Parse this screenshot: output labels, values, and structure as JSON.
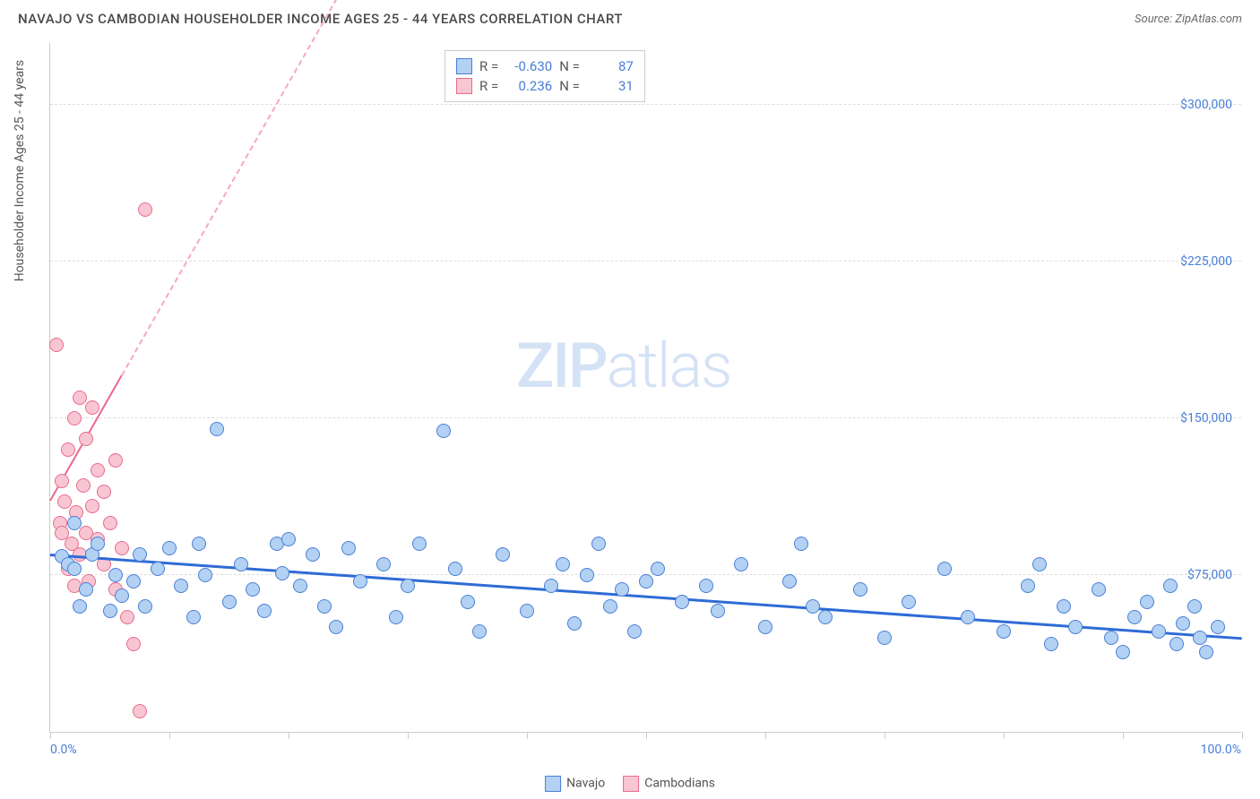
{
  "title": "NAVAJO VS CAMBODIAN HOUSEHOLDER INCOME AGES 25 - 44 YEARS CORRELATION CHART",
  "source_label": "Source: ZipAtlas.com",
  "ylabel": "Householder Income Ages 25 - 44 years",
  "watermark_a": "ZIP",
  "watermark_b": "atlas",
  "chart": {
    "type": "scatter",
    "background_color": "#ffffff",
    "grid_color": "#dddddd",
    "axis_color": "#cccccc",
    "tick_label_color": "#4a7fd8",
    "xlim": [
      0,
      100
    ],
    "ylim": [
      0,
      330000
    ],
    "x_labels": {
      "min": "0.0%",
      "max": "100.0%"
    },
    "y_ticks": [
      {
        "value": 75000,
        "label": "$75,000"
      },
      {
        "value": 150000,
        "label": "$150,000"
      },
      {
        "value": 225000,
        "label": "$225,000"
      },
      {
        "value": 300000,
        "label": "$300,000"
      }
    ],
    "x_tick_positions": [
      0,
      10,
      20,
      30,
      40,
      50,
      60,
      70,
      80,
      90,
      100
    ],
    "marker_radius": 8,
    "series": [
      {
        "name": "Navajo",
        "fill": "#b3d1f2",
        "stroke": "#4a7fd8",
        "R": "-0.630",
        "N": "87",
        "trend": {
          "x1": 0,
          "y1": 84000,
          "x2": 100,
          "y2": 44000,
          "color": "#2e6bd6",
          "width": 3,
          "dashed": false
        },
        "points": [
          [
            1,
            84000
          ],
          [
            1.5,
            80000
          ],
          [
            2,
            100000
          ],
          [
            2,
            78000
          ],
          [
            2.5,
            60000
          ],
          [
            3,
            68000
          ],
          [
            3.5,
            85000
          ],
          [
            4,
            90000
          ],
          [
            5,
            58000
          ],
          [
            5.5,
            75000
          ],
          [
            6,
            65000
          ],
          [
            7,
            72000
          ],
          [
            7.5,
            85000
          ],
          [
            8,
            60000
          ],
          [
            9,
            78000
          ],
          [
            10,
            88000
          ],
          [
            11,
            70000
          ],
          [
            12,
            55000
          ],
          [
            12.5,
            90000
          ],
          [
            13,
            75000
          ],
          [
            14,
            145000
          ],
          [
            15,
            62000
          ],
          [
            16,
            80000
          ],
          [
            17,
            68000
          ],
          [
            18,
            58000
          ],
          [
            19,
            90000
          ],
          [
            19.5,
            76000
          ],
          [
            20,
            92000
          ],
          [
            21,
            70000
          ],
          [
            22,
            85000
          ],
          [
            23,
            60000
          ],
          [
            24,
            50000
          ],
          [
            25,
            88000
          ],
          [
            26,
            72000
          ],
          [
            28,
            80000
          ],
          [
            29,
            55000
          ],
          [
            30,
            70000
          ],
          [
            31,
            90000
          ],
          [
            33,
            144000
          ],
          [
            34,
            78000
          ],
          [
            35,
            62000
          ],
          [
            36,
            48000
          ],
          [
            38,
            85000
          ],
          [
            40,
            58000
          ],
          [
            42,
            70000
          ],
          [
            43,
            80000
          ],
          [
            44,
            52000
          ],
          [
            45,
            75000
          ],
          [
            46,
            90000
          ],
          [
            47,
            60000
          ],
          [
            48,
            68000
          ],
          [
            49,
            48000
          ],
          [
            50,
            72000
          ],
          [
            51,
            78000
          ],
          [
            53,
            62000
          ],
          [
            55,
            70000
          ],
          [
            56,
            58000
          ],
          [
            58,
            80000
          ],
          [
            60,
            50000
          ],
          [
            62,
            72000
          ],
          [
            63,
            90000
          ],
          [
            64,
            60000
          ],
          [
            65,
            55000
          ],
          [
            68,
            68000
          ],
          [
            70,
            45000
          ],
          [
            72,
            62000
          ],
          [
            75,
            78000
          ],
          [
            77,
            55000
          ],
          [
            80,
            48000
          ],
          [
            82,
            70000
          ],
          [
            83,
            80000
          ],
          [
            84,
            42000
          ],
          [
            85,
            60000
          ],
          [
            86,
            50000
          ],
          [
            88,
            68000
          ],
          [
            89,
            45000
          ],
          [
            90,
            38000
          ],
          [
            91,
            55000
          ],
          [
            92,
            62000
          ],
          [
            93,
            48000
          ],
          [
            94,
            70000
          ],
          [
            94.5,
            42000
          ],
          [
            95,
            52000
          ],
          [
            96,
            60000
          ],
          [
            96.5,
            45000
          ],
          [
            97,
            38000
          ],
          [
            98,
            50000
          ]
        ]
      },
      {
        "name": "Cambodians",
        "fill": "#f8c6d3",
        "stroke": "#e86a8f",
        "R": "0.236",
        "N": "31",
        "trend_solid": {
          "x1": 0,
          "y1": 110000,
          "x2": 6,
          "y2": 170000,
          "color": "#e86a8f",
          "width": 2
        },
        "trend_dashed": {
          "x1": 6,
          "y1": 170000,
          "x2": 27,
          "y2": 380000,
          "color": "#f4a9bd",
          "width": 2
        },
        "points": [
          [
            0.5,
            185000
          ],
          [
            0.8,
            100000
          ],
          [
            1,
            120000
          ],
          [
            1,
            95000
          ],
          [
            1.2,
            110000
          ],
          [
            1.5,
            78000
          ],
          [
            1.5,
            135000
          ],
          [
            1.8,
            90000
          ],
          [
            2,
            150000
          ],
          [
            2,
            70000
          ],
          [
            2.2,
            105000
          ],
          [
            2.5,
            160000
          ],
          [
            2.5,
            85000
          ],
          [
            2.8,
            118000
          ],
          [
            3,
            95000
          ],
          [
            3,
            140000
          ],
          [
            3.2,
            72000
          ],
          [
            3.5,
            108000
          ],
          [
            3.5,
            155000
          ],
          [
            4,
            92000
          ],
          [
            4,
            125000
          ],
          [
            4.5,
            80000
          ],
          [
            4.5,
            115000
          ],
          [
            5,
            100000
          ],
          [
            5.5,
            68000
          ],
          [
            5.5,
            130000
          ],
          [
            6,
            88000
          ],
          [
            6.5,
            55000
          ],
          [
            7,
            42000
          ],
          [
            7.5,
            10000
          ],
          [
            8,
            250000
          ]
        ]
      }
    ]
  }
}
